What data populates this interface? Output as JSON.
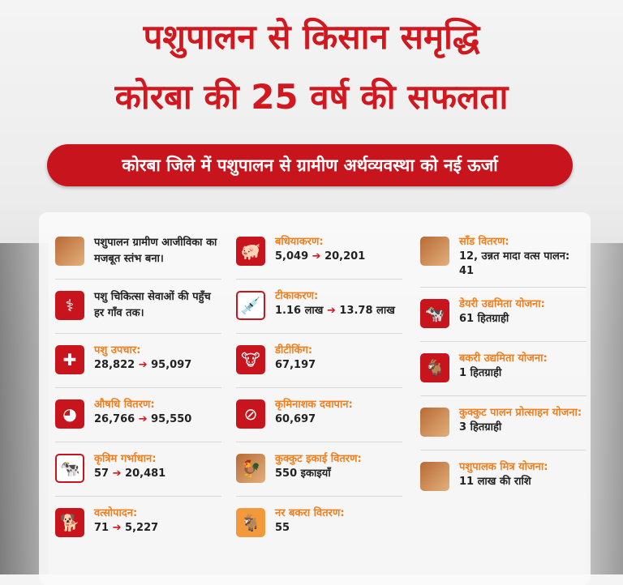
{
  "title_line1": "पशुपालन से किसान समृद्धि",
  "title_line2": "कोरबा की 25 वर्ष की सफलता",
  "banner": "कोरबा जिले में पशुपालन से ग्रामीण अर्थव्यवस्था को नई ऊर्जा",
  "colors": {
    "accent_red": "#c8141c",
    "label_orange": "#f07f1f"
  },
  "columns": [
    [
      {
        "icon": "cattle-photo-icon",
        "style": "photo",
        "glyph": "",
        "desc": "पशुपालन ग्रामीण आजीविका का मजबूत स्तंभ बना।"
      },
      {
        "icon": "veterinarian-icon",
        "style": "",
        "glyph": "⚕",
        "desc": "पशु चिकित्सा सेवाओं की पहुँच हर गाँव तक।"
      },
      {
        "icon": "medical-cross-icon",
        "style": "",
        "glyph": "✚",
        "label": "पशु उपचार:",
        "from": "28,822",
        "to": "95,097"
      },
      {
        "icon": "pills-icon",
        "style": "",
        "glyph": "◕",
        "label": "औषधि वितरण:",
        "from": "26,766",
        "to": "95,550"
      },
      {
        "icon": "cow-icon",
        "style": "outline",
        "glyph": "🐄",
        "label": "कृत्रिम गर्भाधान:",
        "from": "57",
        "to": "20,481"
      },
      {
        "icon": "calf-icon",
        "style": "",
        "glyph": "🐕",
        "label": "वत्सोपादन:",
        "from": "71",
        "to": "5,227"
      }
    ],
    [
      {
        "icon": "pig-icon",
        "style": "",
        "glyph": "🐖",
        "label": "बधियाकरण:",
        "from": "5,049",
        "to": "20,201"
      },
      {
        "icon": "vaccination-icon",
        "style": "outline",
        "glyph": "💉",
        "label": "टीकाकरण:",
        "from": "1.16 लाख",
        "to": "13.78 लाख"
      },
      {
        "icon": "bull-head-icon",
        "style": "",
        "glyph": "🐮",
        "label": "डीटीकिंग:",
        "value": "67,197"
      },
      {
        "icon": "deworming-tablets-icon",
        "style": "",
        "glyph": "⊘",
        "label": "कृमिनाशक दवापान:",
        "value": "60,697"
      },
      {
        "icon": "rooster-photo-icon",
        "style": "photo",
        "glyph": "🐓",
        "label": "कुक्कुट इकाई वितरण:",
        "value": "550 इकाइयाँ"
      },
      {
        "icon": "goat-photo-icon",
        "style": "orange",
        "glyph": "🐐",
        "label": "नर बकरा वितरण:",
        "value": "55"
      }
    ],
    [
      {
        "icon": "bull-photo-icon",
        "style": "photo",
        "glyph": "",
        "label": "साँड वितरण:",
        "value": "12, उन्नत मादा वत्स पालन: 41"
      },
      {
        "icon": "dairy-cow-icon",
        "style": "",
        "glyph": "🐄",
        "label": "डेयरी उद्यमिता योजना:",
        "value": "61 हितग्राही"
      },
      {
        "icon": "goat-icon",
        "style": "",
        "glyph": "🐐",
        "label": "बकरी उद्यमिता योजना:",
        "value": "1 हितग्राही"
      },
      {
        "icon": "poultry-farm-photo-icon",
        "style": "photo",
        "glyph": "",
        "label": "कुक्कुट पालन प्रोत्साहन योजना:",
        "value": "3 हितग्राही"
      },
      {
        "icon": "farmer-photo-icon",
        "style": "photo",
        "glyph": "",
        "label": "पशुपालक मित्र योजना:",
        "value": "11 लाख की राशि"
      }
    ]
  ]
}
